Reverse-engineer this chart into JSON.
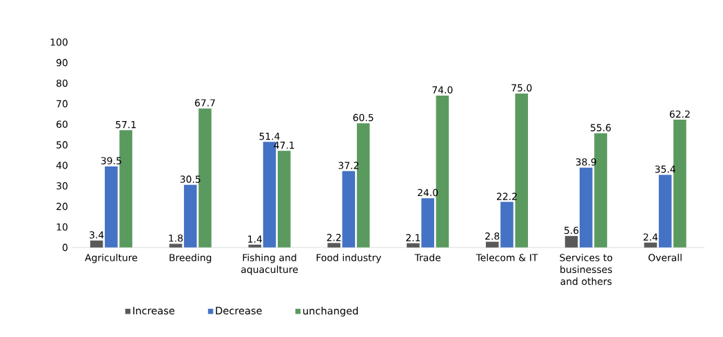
{
  "chart_data": {
    "type": "bar",
    "categories": [
      "Agriculture",
      "Breeding",
      "Fishing and aquaculture",
      "Food industry",
      "Trade",
      "Telecom & IT",
      "Services to businesses and others",
      "Overall"
    ],
    "series": [
      {
        "name": "Increase",
        "color": "#595959",
        "values": [
          3.4,
          1.8,
          1.4,
          2.2,
          2.1,
          2.8,
          5.6,
          2.4
        ],
        "value_labels": [
          "3.4",
          "1.8",
          "1.4",
          "2.2",
          "2.1",
          "2.8",
          "5.6",
          "2.4"
        ]
      },
      {
        "name": "Decrease",
        "color": "#4472c4",
        "values": [
          39.5,
          30.5,
          51.4,
          37.2,
          24.0,
          22.2,
          38.9,
          35.4
        ],
        "value_labels": [
          "39.5",
          "30.5",
          "51.4",
          "37.2",
          "24.0",
          "22.2",
          "38.9",
          "35.4"
        ]
      },
      {
        "name": "unchanged",
        "color": "#5b9a5f",
        "values": [
          57.1,
          67.7,
          47.1,
          60.5,
          74.0,
          75.0,
          55.6,
          62.2
        ],
        "value_labels": [
          "57.1",
          "67.7",
          "47.1",
          "60.5",
          "74.0",
          "75.0",
          "55.6",
          "62.2"
        ]
      }
    ],
    "ylim": [
      0,
      100
    ],
    "yticks": [
      0,
      10,
      20,
      30,
      40,
      50,
      60,
      70,
      80,
      90,
      100
    ],
    "legend": "bottom"
  }
}
